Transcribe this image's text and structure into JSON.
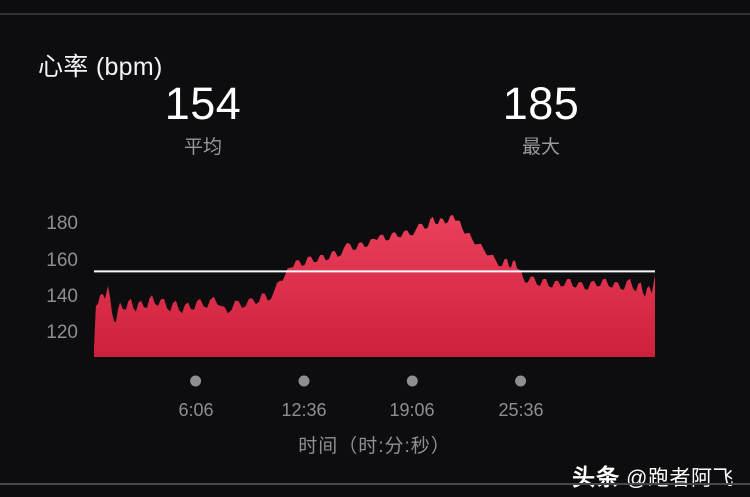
{
  "header": {
    "title": "心率 (bpm)"
  },
  "stats": {
    "average": {
      "value": "154",
      "label": "平均"
    },
    "max": {
      "value": "185",
      "label": "最大"
    }
  },
  "watermark": {
    "brand": "头条",
    "handle": "@跑者阿飞"
  },
  "colors": {
    "background": "#0d0d0f",
    "area_top": "#ef4560",
    "area_bottom": "#cd203c",
    "average_line": "#fafafa",
    "tick_text": "#8e8e93",
    "dot": "#8e8e93",
    "stat_value": "#ffffff",
    "secondary_text": "#98989d"
  },
  "chart_data": {
    "type": "area",
    "title": "心率 (bpm)",
    "xlabel": "时间（时:分:秒）",
    "ylabel": "bpm",
    "legend": "none",
    "grid": false,
    "average_bpm": 154,
    "max_bpm": 185,
    "ylim": [
      107,
      196
    ],
    "y_ticks": [
      120,
      140,
      160,
      180
    ],
    "x_range_seconds": [
      0,
      2020
    ],
    "x_ticks": [
      {
        "t": 366,
        "label": "6:06"
      },
      {
        "t": 756,
        "label": "12:36"
      },
      {
        "t": 1146,
        "label": "19:06"
      },
      {
        "t": 1536,
        "label": "25:36"
      }
    ],
    "series": [
      {
        "name": "心率",
        "points": [
          [
            0,
            112
          ],
          [
            7,
            135
          ],
          [
            22,
            141
          ],
          [
            40,
            139
          ],
          [
            50,
            146
          ],
          [
            65,
            131
          ],
          [
            79,
            126
          ],
          [
            94,
            137
          ],
          [
            115,
            133
          ],
          [
            133,
            139
          ],
          [
            151,
            132
          ],
          [
            169,
            138
          ],
          [
            191,
            134
          ],
          [
            209,
            141
          ],
          [
            230,
            135
          ],
          [
            252,
            139
          ],
          [
            274,
            132
          ],
          [
            295,
            138
          ],
          [
            317,
            131
          ],
          [
            338,
            137
          ],
          [
            360,
            133
          ],
          [
            382,
            139
          ],
          [
            407,
            134
          ],
          [
            432,
            140
          ],
          [
            457,
            135
          ],
          [
            482,
            131
          ],
          [
            508,
            138
          ],
          [
            533,
            134
          ],
          [
            558,
            139
          ],
          [
            583,
            136
          ],
          [
            605,
            142
          ],
          [
            626,
            138
          ],
          [
            648,
            143
          ],
          [
            670,
            149
          ],
          [
            688,
            152
          ],
          [
            706,
            156
          ],
          [
            727,
            160
          ],
          [
            749,
            157
          ],
          [
            770,
            162
          ],
          [
            792,
            159
          ],
          [
            814,
            163
          ],
          [
            835,
            160
          ],
          [
            857,
            165
          ],
          [
            878,
            162
          ],
          [
            900,
            167
          ],
          [
            922,
            169
          ],
          [
            943,
            166
          ],
          [
            965,
            170
          ],
          [
            986,
            168
          ],
          [
            1008,
            172
          ],
          [
            1030,
            174
          ],
          [
            1051,
            171
          ],
          [
            1073,
            175
          ],
          [
            1094,
            173
          ],
          [
            1116,
            176
          ],
          [
            1138,
            174
          ],
          [
            1159,
            177
          ],
          [
            1181,
            180
          ],
          [
            1202,
            178
          ],
          [
            1220,
            184
          ],
          [
            1238,
            180
          ],
          [
            1256,
            183
          ],
          [
            1274,
            181
          ],
          [
            1292,
            185
          ],
          [
            1310,
            182
          ],
          [
            1325,
            178
          ],
          [
            1343,
            175
          ],
          [
            1361,
            172
          ],
          [
            1382,
            169
          ],
          [
            1404,
            166
          ],
          [
            1426,
            163
          ],
          [
            1447,
            160
          ],
          [
            1469,
            157
          ],
          [
            1487,
            161
          ],
          [
            1501,
            156
          ],
          [
            1516,
            160
          ],
          [
            1530,
            155
          ],
          [
            1544,
            151
          ],
          [
            1562,
            148
          ],
          [
            1584,
            151
          ],
          [
            1606,
            146
          ],
          [
            1627,
            150
          ],
          [
            1649,
            145
          ],
          [
            1670,
            149
          ],
          [
            1692,
            146
          ],
          [
            1714,
            150
          ],
          [
            1735,
            145
          ],
          [
            1757,
            148
          ],
          [
            1778,
            144
          ],
          [
            1800,
            149
          ],
          [
            1822,
            146
          ],
          [
            1843,
            150
          ],
          [
            1865,
            145
          ],
          [
            1886,
            148
          ],
          [
            1908,
            144
          ],
          [
            1930,
            150
          ],
          [
            1951,
            143
          ],
          [
            1969,
            148
          ],
          [
            1984,
            140
          ],
          [
            1998,
            146
          ],
          [
            2009,
            142
          ],
          [
            2020,
            152
          ]
        ]
      }
    ]
  }
}
